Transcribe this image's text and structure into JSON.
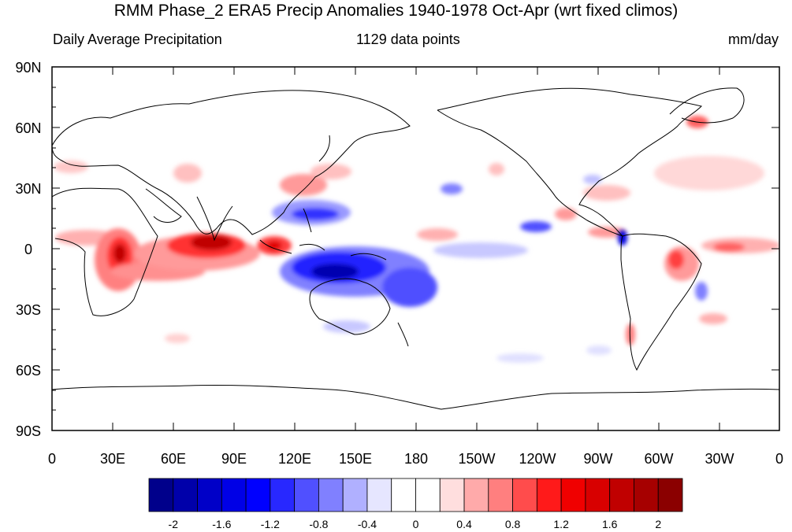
{
  "title": "RMM Phase_2 ERA5 Precip Anomalies 1940-1978 Oct-Apr (wrt fixed climos)",
  "subtitle_left": "Daily Average Precipitation",
  "subtitle_center": "1129 data points",
  "subtitle_right": "mm/day",
  "lat_labels": [
    "90N",
    "60N",
    "30N",
    "0",
    "30S",
    "60S",
    "90S"
  ],
  "lon_labels": [
    "0",
    "30E",
    "60E",
    "90E",
    "120E",
    "150E",
    "180",
    "150W",
    "120W",
    "90W",
    "60W",
    "30W",
    "0"
  ],
  "colorbar": {
    "colors": [
      "#00008b",
      "#0000aa",
      "#0000c8",
      "#0000e6",
      "#0000ff",
      "#2828ff",
      "#5050ff",
      "#8080ff",
      "#b0b0ff",
      "#e6e6ff",
      "#ffffff",
      "#ffffff",
      "#ffdede",
      "#ffaaaa",
      "#ff7f7f",
      "#ff4c4c",
      "#ff1a1a",
      "#f00000",
      "#d80000",
      "#c00000",
      "#a60000",
      "#8b0000"
    ],
    "labels": [
      "-2",
      "-1.6",
      "-1.2",
      "-0.8",
      "-0.4",
      "0",
      "0.4",
      "0.8",
      "1.2",
      "1.6",
      "2"
    ]
  }
}
